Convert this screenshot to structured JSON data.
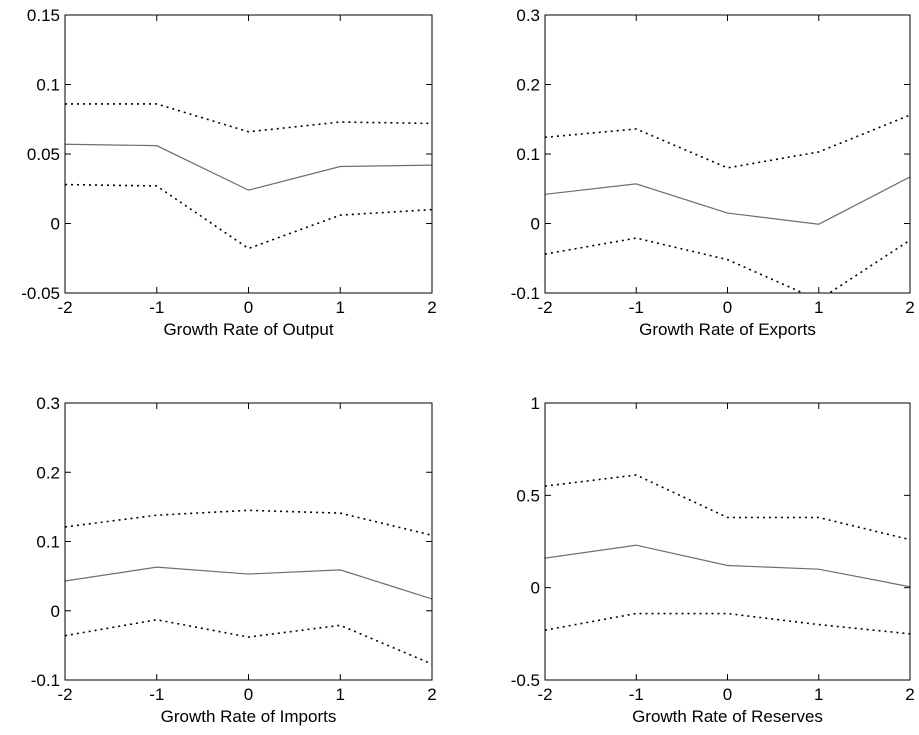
{
  "chart_data": [
    {
      "type": "line",
      "xlabel": "Growth Rate of Output",
      "x": [
        -2,
        -1,
        0,
        1,
        2
      ],
      "xlim": [
        -2,
        2
      ],
      "xticks": [
        -2,
        -1,
        0,
        1,
        2
      ],
      "ylim": [
        -0.05,
        0.15
      ],
      "yticks": [
        -0.05,
        0,
        0.05,
        0.1,
        0.15
      ],
      "series": [
        {
          "color": "#6e6e6e",
          "line_style": "solid",
          "values": [
            0.057,
            0.056,
            0.024,
            0.041,
            0.042
          ]
        },
        {
          "color": "#000000",
          "line_style": "dotted",
          "values": [
            0.086,
            0.086,
            0.066,
            0.073,
            0.072
          ]
        },
        {
          "color": "#000000",
          "line_style": "dotted",
          "values": [
            0.028,
            0.027,
            -0.018,
            0.006,
            0.01
          ]
        }
      ]
    },
    {
      "type": "line",
      "xlabel": "Growth Rate of Exports",
      "x": [
        -2,
        -1,
        0,
        1,
        2
      ],
      "xlim": [
        -2,
        2
      ],
      "xticks": [
        -2,
        -1,
        0,
        1,
        2
      ],
      "ylim": [
        -0.1,
        0.3
      ],
      "yticks": [
        -0.1,
        0,
        0.1,
        0.2,
        0.3
      ],
      "series": [
        {
          "color": "#6e6e6e",
          "line_style": "solid",
          "values": [
            0.042,
            0.057,
            0.015,
            -0.001,
            0.067
          ]
        },
        {
          "color": "#000000",
          "line_style": "dotted",
          "values": [
            0.124,
            0.136,
            0.08,
            0.103,
            0.156
          ]
        },
        {
          "color": "#000000",
          "line_style": "dotted",
          "values": [
            -0.044,
            -0.021,
            -0.052,
            -0.11,
            -0.024
          ]
        }
      ]
    },
    {
      "type": "line",
      "xlabel": "Growth Rate of Imports",
      "x": [
        -2,
        -1,
        0,
        1,
        2
      ],
      "xlim": [
        -2,
        2
      ],
      "xticks": [
        -2,
        -1,
        0,
        1,
        2
      ],
      "ylim": [
        -0.1,
        0.3
      ],
      "yticks": [
        -0.1,
        0,
        0.1,
        0.2,
        0.3
      ],
      "series": [
        {
          "color": "#6e6e6e",
          "line_style": "solid",
          "values": [
            0.043,
            0.063,
            0.053,
            0.059,
            0.017
          ]
        },
        {
          "color": "#000000",
          "line_style": "dotted",
          "values": [
            0.121,
            0.138,
            0.145,
            0.141,
            0.109
          ]
        },
        {
          "color": "#000000",
          "line_style": "dotted",
          "values": [
            -0.036,
            -0.013,
            -0.038,
            -0.021,
            -0.077
          ]
        }
      ]
    },
    {
      "type": "line",
      "xlabel": "Growth Rate of Reserves",
      "x": [
        -2,
        -1,
        0,
        1,
        2
      ],
      "xlim": [
        -2,
        2
      ],
      "xticks": [
        -2,
        -1,
        0,
        1,
        2
      ],
      "ylim": [
        -0.5,
        1
      ],
      "yticks": [
        -0.5,
        0,
        0.5,
        1
      ],
      "series": [
        {
          "color": "#6e6e6e",
          "line_style": "solid",
          "values": [
            0.16,
            0.23,
            0.12,
            0.1,
            0.005
          ]
        },
        {
          "color": "#000000",
          "line_style": "dotted",
          "values": [
            0.55,
            0.61,
            0.38,
            0.38,
            0.26
          ]
        },
        {
          "color": "#000000",
          "line_style": "dotted",
          "values": [
            -0.23,
            -0.14,
            -0.14,
            -0.2,
            -0.25
          ]
        }
      ]
    }
  ]
}
